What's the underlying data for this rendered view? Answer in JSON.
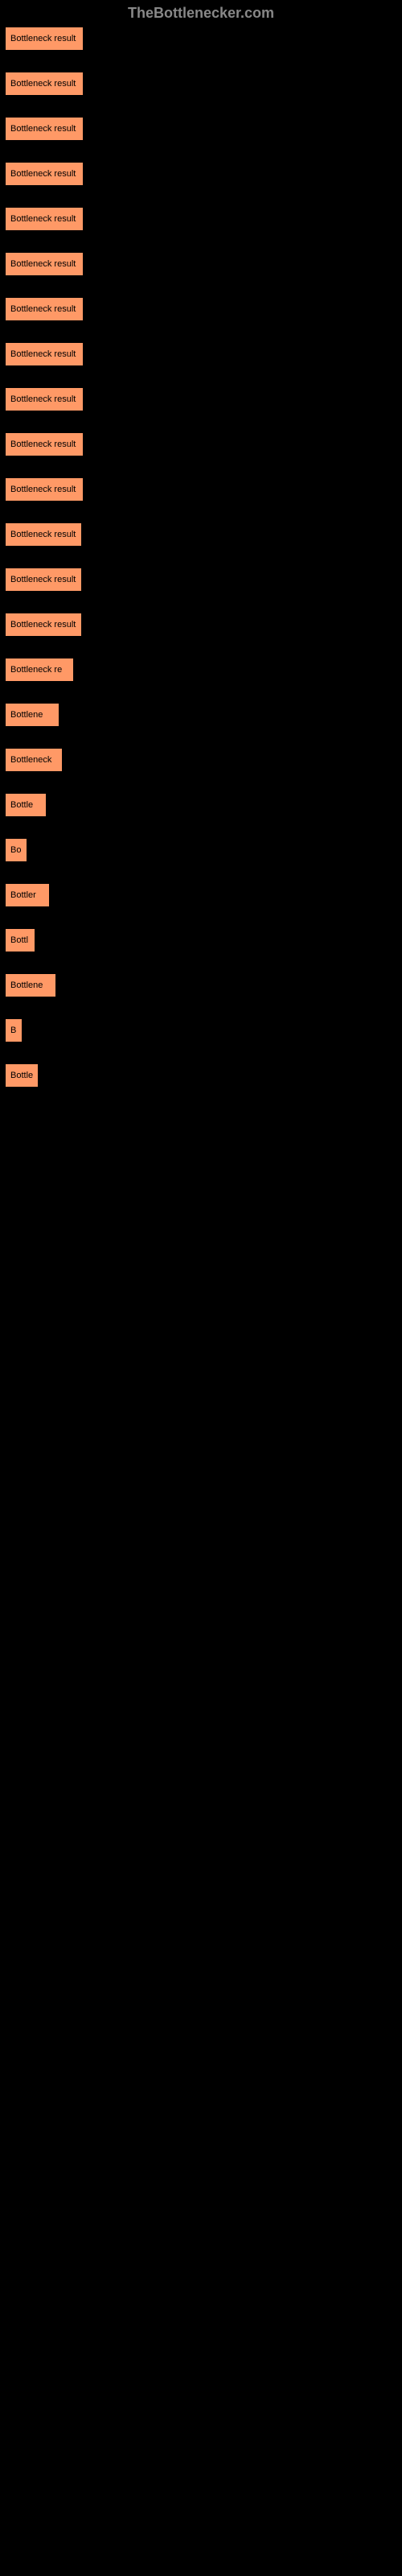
{
  "header": {
    "text": "TheBottlenecker.com"
  },
  "items": [
    {
      "label": "Bottleneck result",
      "widthClass": "w84"
    },
    {
      "label": "Bottleneck result",
      "widthClass": "w84"
    },
    {
      "label": "Bottleneck result",
      "widthClass": "w84"
    },
    {
      "label": "Bottleneck result",
      "widthClass": "w84"
    },
    {
      "label": "Bottleneck result",
      "widthClass": "w84"
    },
    {
      "label": "Bottleneck result",
      "widthClass": "w84"
    },
    {
      "label": "Bottleneck result",
      "widthClass": "w84"
    },
    {
      "label": "Bottleneck result",
      "widthClass": "w84"
    },
    {
      "label": "Bottleneck result",
      "widthClass": "w84"
    },
    {
      "label": "Bottleneck result",
      "widthClass": "w84"
    },
    {
      "label": "Bottleneck result",
      "widthClass": "w84"
    },
    {
      "label": "Bottleneck result",
      "widthClass": "w82"
    },
    {
      "label": "Bottleneck result",
      "widthClass": "w82"
    },
    {
      "label": "Bottleneck result",
      "widthClass": "w82"
    },
    {
      "label": "Bottleneck re",
      "widthClass": "w72"
    },
    {
      "label": "Bottlene",
      "widthClass": "w54"
    },
    {
      "label": "Bottleneck",
      "widthClass": "w58"
    },
    {
      "label": "Bottle",
      "widthClass": "w38"
    },
    {
      "label": "Bo",
      "widthClass": "w14"
    },
    {
      "label": "Bottler",
      "widthClass": "w42"
    },
    {
      "label": "Bottl",
      "widthClass": "w24"
    },
    {
      "label": "Bottlene",
      "widthClass": "w50"
    },
    {
      "label": "B",
      "widthClass": "w8"
    },
    {
      "label": "Bottle",
      "widthClass": "w28"
    }
  ],
  "colors": {
    "background": "#000000",
    "itemBackground": "#ff9966",
    "headerText": "#888888",
    "itemText": "#000000"
  }
}
